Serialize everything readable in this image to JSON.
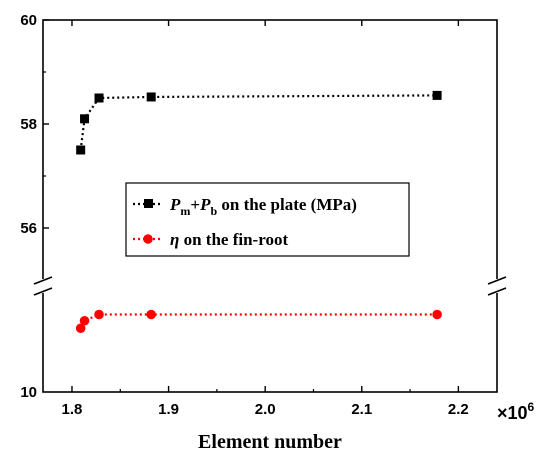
{
  "chart_data": {
    "type": "line",
    "xlabel": "Element number",
    "x_multiplier_base": "×10",
    "x_multiplier_exp": "6",
    "xlim": [
      1.77,
      2.24
    ],
    "x_ticks": [
      1.8,
      1.9,
      2.0,
      2.1,
      2.2
    ],
    "x_tick_labels": [
      "1.8",
      "1.9",
      "2.0",
      "2.1",
      "2.2"
    ],
    "y_upper": {
      "range": [
        55.0,
        60.0
      ],
      "ticks": [
        56,
        58,
        60
      ],
      "tick_labels": [
        "56",
        "58",
        "60"
      ]
    },
    "y_lower": {
      "range": [
        10.0,
        14.0
      ],
      "ticks": [
        10
      ],
      "tick_labels": [
        "10"
      ]
    },
    "axis_break": true,
    "legend": {
      "position": "center-right",
      "frame": true
    },
    "series": [
      {
        "name_main": "P",
        "name_sub1": "m",
        "name_plus": "+",
        "name_main2": "P",
        "name_sub2": "b",
        "name_rest": " on the plate (MPa)",
        "color": "#000000",
        "marker": "square",
        "linestyle": "dotted",
        "panel": "upper",
        "x": [
          1.809,
          1.813,
          1.828,
          1.882,
          2.178
        ],
        "y": [
          57.5,
          58.1,
          58.5,
          58.52,
          58.55
        ]
      },
      {
        "name_main": "η",
        "name_rest": " on the fin-root",
        "color": "#ff0000",
        "marker": "circle",
        "linestyle": "dotted",
        "panel": "lower",
        "x": [
          1.809,
          1.813,
          1.828,
          1.882,
          2.178
        ],
        "y": [
          12.55,
          12.85,
          13.1,
          13.1,
          13.1
        ]
      }
    ]
  }
}
